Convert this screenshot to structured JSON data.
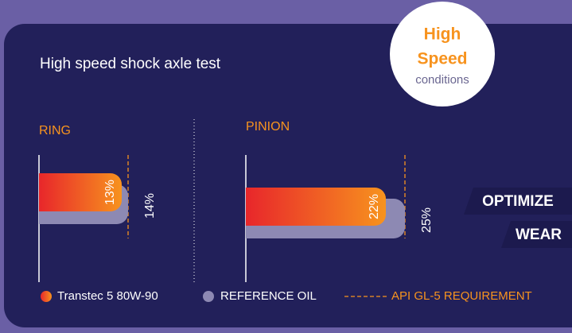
{
  "chart_data": {
    "type": "bar",
    "title": "High speed shock axle test",
    "badge": [
      "High",
      "Speed",
      "conditions"
    ],
    "tags": [
      "OPTIMIZE",
      "WEAR"
    ],
    "categories": [
      "RING",
      "PINION"
    ],
    "series": [
      {
        "name": "Transtec 5 80W-90",
        "color": "#f7931e",
        "values": [
          13,
          22
        ],
        "value_labels": [
          "13%",
          "22%"
        ]
      },
      {
        "name": "REFERENCE OIL",
        "color": "#8d89b3",
        "values": [
          14,
          25
        ],
        "value_labels": [
          "14%",
          "25%"
        ]
      },
      {
        "name": "API GL-5 REQUIREMENT",
        "color": "#f7931e",
        "style": "dashed",
        "values": [
          14,
          25
        ]
      }
    ],
    "xlim": [
      0,
      30
    ]
  }
}
